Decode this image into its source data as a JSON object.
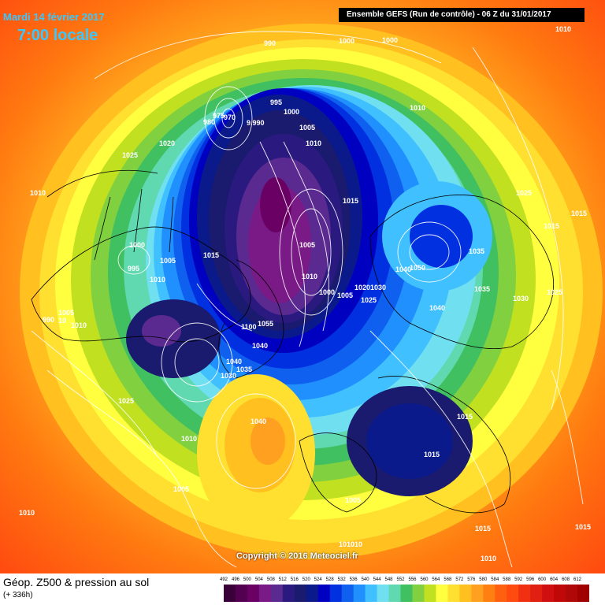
{
  "header": {
    "date": "Mardi 14 février 2017",
    "time": "7:00 locale",
    "run_info": "Ensemble GEFS  (Run de contrôle)  -  06 Z du 31/01/2017"
  },
  "copyright": "Copyright © 2016 Meteociel.fr",
  "footer": {
    "title": "Géop. Z500 & pression au sol",
    "subtitle": "(+ 336h)"
  },
  "legend": {
    "values": [
      "492",
      "496",
      "500",
      "504",
      "508",
      "512",
      "516",
      "520",
      "524",
      "528",
      "532",
      "536",
      "540",
      "544",
      "548",
      "552",
      "556",
      "560",
      "564",
      "568",
      "572",
      "576",
      "580",
      "584",
      "588",
      "592",
      "596",
      "600",
      "604",
      "608",
      "612"
    ],
    "colors": [
      "#3a003a",
      "#52004f",
      "#6a0064",
      "#7a1a86",
      "#5a2a90",
      "#2a1a80",
      "#1a1a6e",
      "#0a1a8a",
      "#0000c0",
      "#0030e0",
      "#1060f0",
      "#2090ff",
      "#40c0ff",
      "#70e0f0",
      "#60d8b0",
      "#40c060",
      "#80d040",
      "#c0e020",
      "#ffff40",
      "#ffe030",
      "#ffc020",
      "#ffa020",
      "#ff8010",
      "#ff6010",
      "#ff4a10",
      "#f03010",
      "#e02010",
      "#d01010",
      "#c00808",
      "#b00808",
      "#a00000"
    ]
  },
  "pressure_labels": [
    "1010",
    "1000",
    "1000",
    "990",
    "1010",
    "995",
    "980",
    "975",
    "970",
    "9.990",
    "1000",
    "1005",
    "1010",
    "1025",
    "1020",
    "1010",
    "1000",
    "995",
    "1005",
    "1010",
    "1015",
    "1005",
    "1015",
    "1025",
    "1015",
    "1035",
    "1050",
    "1040",
    "1035",
    "1030",
    "1025",
    "1040",
    "1015",
    "1010",
    "1000",
    "1005",
    "1020",
    "1030",
    "1025",
    "1005",
    "990",
    "10",
    "1010",
    "1055",
    "1100",
    "1040",
    "1040",
    "1035",
    "1030",
    "1025",
    "1010",
    "1040",
    "1010",
    "1005",
    "1015",
    "1005",
    "1015",
    "1010",
    "1010",
    "1015",
    "1015",
    "1010"
  ]
}
